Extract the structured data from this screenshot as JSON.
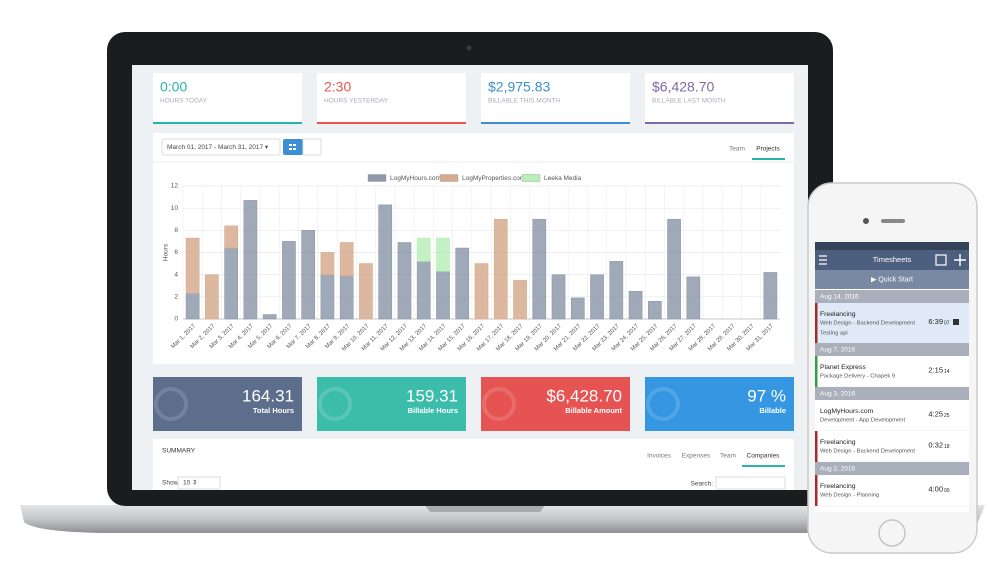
{
  "stats": [
    {
      "value": "0:00",
      "label": "HOURS TODAY"
    },
    {
      "value": "2:30",
      "label": "HOURS YESTERDAY"
    },
    {
      "value": "$2,975.83",
      "label": "BILLABLE THIS MONTH"
    },
    {
      "value": "$6,428.70",
      "label": "BILLABLE LAST MONTH"
    }
  ],
  "toolbar": {
    "date_range": "March 01, 2017 - March 31, 2017 ▾",
    "tabs": [
      "Team",
      "Projects"
    ]
  },
  "chart_data": {
    "type": "bar",
    "stacked": true,
    "y_label": "Hours",
    "categories": [
      "Mar 1, 2017",
      "Mar 2, 2017",
      "Mar 3, 2017",
      "Mar 4, 2017",
      "Mar 5, 2017",
      "Mar 6, 2017",
      "Mar 7, 2017",
      "Mar 8, 2017",
      "Mar 9, 2017",
      "Mar 10, 2017",
      "Mar 11, 2017",
      "Mar 12, 2017",
      "Mar 13, 2017",
      "Mar 14, 2017",
      "Mar 15, 2017",
      "Mar 16, 2017",
      "Mar 17, 2017",
      "Mar 18, 2017",
      "Mar 19, 2017",
      "Mar 20, 2017",
      "Mar 21, 2017",
      "Mar 22, 2017",
      "Mar 23, 2017",
      "Mar 24, 2017",
      "Mar 25, 2017",
      "Mar 26, 2017",
      "Mar 27, 2017",
      "Mar 28, 2017",
      "Mar 29, 2017",
      "Mar 30, 2017",
      "Mar 31, 2017"
    ],
    "series": [
      {
        "name": "LogMyHours.com",
        "color": "#8e9aab",
        "values": [
          2.3,
          0,
          6.4,
          10.7,
          0.4,
          7.0,
          8.0,
          4.0,
          3.9,
          0,
          10.3,
          6.9,
          5.2,
          4.3,
          6.4,
          0,
          0,
          0,
          9.0,
          4.0,
          1.9,
          4.0,
          5.2,
          2.5,
          1.6,
          9.0,
          3.8,
          0,
          0,
          0,
          4.2
        ]
      },
      {
        "name": "LogMyProperties.com",
        "color": "#d6ab90",
        "values": [
          5.0,
          4.0,
          2.0,
          0,
          0,
          0,
          0,
          2.0,
          3.0,
          5.0,
          0,
          0,
          0,
          0,
          0,
          5.0,
          9.0,
          3.5,
          0,
          0,
          0,
          0,
          0,
          0,
          0,
          0,
          0,
          0,
          0,
          0,
          0
        ]
      },
      {
        "name": "Leeka Media",
        "color": "#b8efb8",
        "values": [
          0,
          0,
          0,
          0,
          0,
          0,
          0,
          0,
          0,
          0,
          0,
          0,
          2.1,
          3.0,
          0,
          0,
          0,
          0,
          0,
          0,
          0,
          0,
          0,
          0,
          0,
          0,
          0,
          0,
          0,
          0,
          0
        ]
      }
    ],
    "ylim": [
      0,
      12
    ],
    "yticks": [
      0,
      2,
      4,
      6,
      8,
      10,
      12
    ],
    "grid": true
  },
  "totals": [
    {
      "value": "164.31",
      "label": "Total Hours"
    },
    {
      "value": "159.31",
      "label": "Billable Hours"
    },
    {
      "value": "$6,428.70",
      "label": "Billable Amount"
    },
    {
      "value": "97 %",
      "label": "Billable"
    }
  ],
  "summary": {
    "title": "SUMMARY",
    "tabs": [
      "Invoices",
      "Expenses",
      "Team",
      "Companies"
    ],
    "show_label": "Show",
    "show_value": "10 ⇕",
    "search_label": "Search:"
  },
  "phone": {
    "title": "Timesheets",
    "quick_start": "▶ Quick Start",
    "groups": [
      {
        "date": "Aug 14, 2016",
        "entries": [
          {
            "project": "Freelancing",
            "task": "Web Design - Backend Development",
            "note": "Testing api",
            "time": "6:39",
            "seconds": "07"
          }
        ]
      },
      {
        "date": "Aug 7, 2016",
        "entries": [
          {
            "project": "Planet Express",
            "task": "Package Delivery - Chapek 9",
            "time": "2:15",
            "seconds": "14"
          }
        ]
      },
      {
        "date": "Aug 3, 2016",
        "entries": [
          {
            "project": "LogMyHours.com",
            "task": "Development - App Development",
            "time": "4:25",
            "seconds": "25"
          },
          {
            "project": "Freelancing",
            "task": "Web Design - Backend Development",
            "time": "0:32",
            "seconds": "18"
          }
        ]
      },
      {
        "date": "Aug 2, 2016",
        "entries": [
          {
            "project": "Freelancing",
            "task": "Web Design - Planning",
            "time": "4:00",
            "seconds": "00"
          }
        ]
      }
    ]
  }
}
